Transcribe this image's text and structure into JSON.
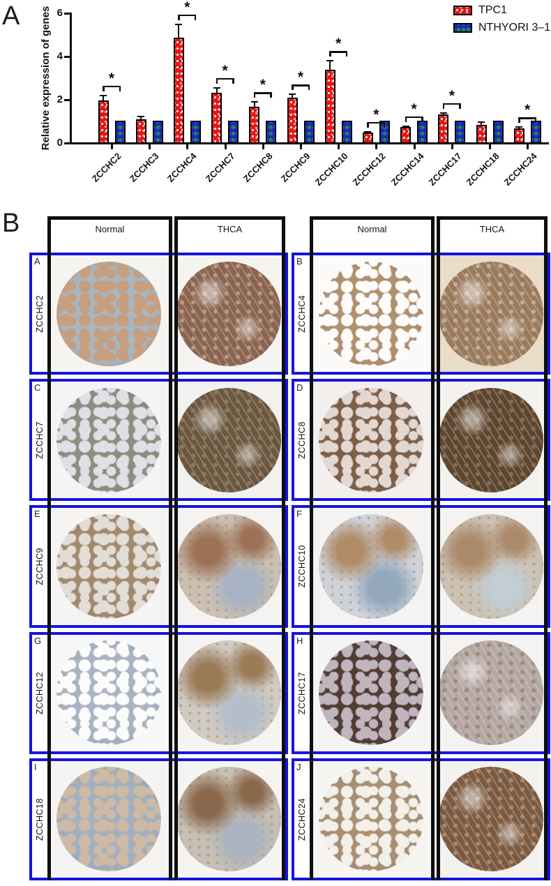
{
  "panelA": {
    "label": "A",
    "legend": [
      {
        "name": "TPC1",
        "color": "#ee1212",
        "pattern": "red-dots"
      },
      {
        "name": "NTHYORI 3–1",
        "color": "#2121d0",
        "pattern": "blue-green-dashes"
      }
    ],
    "chart_data": {
      "type": "bar",
      "title": "",
      "xlabel": "",
      "ylabel": "Relative expression of genes",
      "ylim": [
        0,
        6
      ],
      "yticks": [
        0,
        2,
        4,
        6
      ],
      "grid": false,
      "legend_position": "top-right",
      "categories": [
        "ZCCHC2",
        "ZCCHC3",
        "ZCCHC4",
        "ZCCHC7",
        "ZCCHC8",
        "ZCCHC9",
        "ZCCHC10",
        "ZCCHC12",
        "ZCCHC14",
        "ZCCHC17",
        "ZCCHC18",
        "ZCCHC24"
      ],
      "series": [
        {
          "name": "TPC1",
          "color": "#ee1212",
          "values": [
            1.95,
            1.05,
            4.85,
            2.3,
            1.65,
            2.05,
            3.35,
            0.45,
            0.7,
            1.3,
            0.8,
            0.65
          ],
          "errors": [
            0.25,
            0.18,
            0.65,
            0.25,
            0.25,
            0.2,
            0.45,
            0.08,
            0.08,
            0.1,
            0.17,
            0.08
          ]
        },
        {
          "name": "NTHYORI 3-1",
          "color": "#2121d0",
          "values": [
            1,
            1,
            1,
            1,
            1,
            1,
            1,
            1,
            1,
            1,
            1,
            1
          ],
          "errors": [
            0,
            0,
            0,
            0,
            0,
            0,
            0,
            0,
            0,
            0,
            0,
            0
          ]
        }
      ],
      "significant": [
        true,
        false,
        true,
        true,
        true,
        true,
        true,
        true,
        true,
        true,
        false,
        true
      ],
      "sig_symbol": "*"
    }
  },
  "panelB": {
    "label": "B",
    "column_headers": [
      "Normal",
      "THCA"
    ],
    "frame_colors": {
      "outer_blue": "#1414e0",
      "column_black": "#0e0e0e"
    },
    "groups": [
      {
        "rows": [
          {
            "letter": "A",
            "gene": "ZCCHC2",
            "normal": {
              "pattern": "follicle",
              "bg": "#f5f4f1",
              "c1": "#aab6bf",
              "c2": "#c69e80"
            },
            "thca": {
              "pattern": "dense",
              "bg": "#f5f4f1",
              "c1": "#8a6450",
              "c2": "#b99a85"
            }
          },
          {
            "letter": "C",
            "gene": "ZCCHC7",
            "normal": {
              "pattern": "follicle",
              "bg": "#f4f4f4",
              "c1": "#8f8d80",
              "c2": "#dde1e5"
            },
            "thca": {
              "pattern": "dense",
              "bg": "#f2f1ef",
              "c1": "#6b5740",
              "c2": "#8f7a5e"
            }
          },
          {
            "letter": "E",
            "gene": "ZCCHC9",
            "normal": {
              "pattern": "follicle",
              "bg": "#f5f4f2",
              "c1": "#a38a6d",
              "c2": "#e2ddd7"
            },
            "thca": {
              "pattern": "mottled",
              "bg": "#f4f3f1",
              "c1": "#cbbfb2",
              "c2": "#9b7257",
              "c3": "#a7b2c2"
            }
          },
          {
            "letter": "G",
            "gene": "ZCCHC12",
            "normal": {
              "pattern": "follicle",
              "bg": "#f7f7f7",
              "c1": "#a9b3c1",
              "c2": "#fbfbfb"
            },
            "thca": {
              "pattern": "mottled",
              "bg": "#f5f4f2",
              "c1": "#d0cac2",
              "c2": "#9a7a57",
              "c3": "#b4bec9"
            }
          },
          {
            "letter": "I",
            "gene": "ZCCHC18",
            "normal": {
              "pattern": "follicle",
              "bg": "#f5f4f2",
              "c1": "#9fb0c1",
              "c2": "#cdb9a4"
            },
            "thca": {
              "pattern": "mottled",
              "bg": "#f5f4f2",
              "c1": "#c7bfb4",
              "c2": "#8a684c",
              "c3": "#aab3bf"
            }
          }
        ]
      },
      {
        "rows": [
          {
            "letter": "B",
            "gene": "ZCCHC4",
            "normal": {
              "pattern": "follicle",
              "bg": "#fbfaf9",
              "c1": "#b0906f",
              "c2": "#fdfcfb"
            },
            "thca": {
              "pattern": "dense",
              "bg": "#e9dcc8",
              "c1": "#9a7a5c",
              "c2": "#c5ad93"
            }
          },
          {
            "letter": "D",
            "gene": "ZCCHC8",
            "normal": {
              "pattern": "follicle",
              "bg": "#f2efec",
              "c1": "#7c5f49",
              "c2": "#e3d8d1"
            },
            "thca": {
              "pattern": "dense",
              "bg": "#f4f2ef",
              "c1": "#5d4630",
              "c2": "#8a6e50"
            }
          },
          {
            "letter": "F",
            "gene": "ZCCHC10",
            "normal": {
              "pattern": "mottled",
              "bg": "#f4f3f1",
              "c1": "#cfd3d8",
              "c2": "#b08c69",
              "c3": "#93a7bd"
            },
            "thca": {
              "pattern": "mottled",
              "bg": "#f4f3f1",
              "c1": "#cdc1b3",
              "c2": "#ab8a6b",
              "c3": "#c2cdd4"
            }
          },
          {
            "letter": "H",
            "gene": "ZCCHC17",
            "normal": {
              "pattern": "follicle",
              "bg": "#f5f4f4",
              "c1": "#513c34",
              "c2": "#c0b4bd"
            },
            "thca": {
              "pattern": "dense",
              "bg": "#f4f3f2",
              "c1": "#b5a7a2",
              "c2": "#9c8a84"
            }
          },
          {
            "letter": "J",
            "gene": "ZCCHC24",
            "normal": {
              "pattern": "follicle",
              "bg": "#f7f5f2",
              "c1": "#a98f72",
              "c2": "#f3efe9"
            },
            "thca": {
              "pattern": "dense",
              "bg": "#f4f2ef",
              "c1": "#7c5a41",
              "c2": "#a88c74"
            }
          }
        ]
      }
    ]
  }
}
